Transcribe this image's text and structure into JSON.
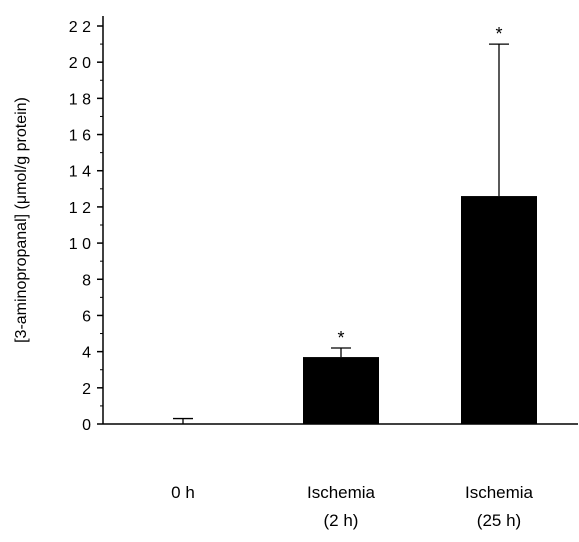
{
  "chart_data": {
    "type": "bar",
    "title": "",
    "xlabel": "",
    "ylabel": "[3-aminopropanal] (μmol/g protein)",
    "ylim": [
      0,
      22
    ],
    "yticks": [
      0,
      2,
      4,
      6,
      8,
      10,
      12,
      14,
      16,
      18,
      20,
      22
    ],
    "ytick_labels": [
      "0",
      "2",
      "4",
      "6",
      "8",
      "1 0",
      "1 2",
      "1 4",
      "1 6",
      "1 8",
      "2 0",
      "2 2"
    ],
    "categories": [
      {
        "line1": "0 h",
        "line2": ""
      },
      {
        "line1": "Ischemia",
        "line2": "(2 h)"
      },
      {
        "line1": "Ischemia",
        "line2": "(25 h)"
      }
    ],
    "values": [
      0,
      3.7,
      12.6
    ],
    "errors": [
      0.3,
      0.5,
      8.4
    ],
    "significance": [
      "",
      "*",
      "*"
    ],
    "bar_color": "#000000"
  }
}
